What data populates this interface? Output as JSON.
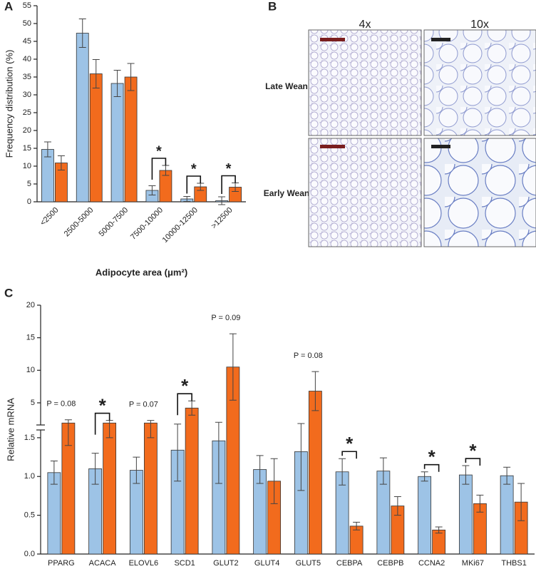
{
  "chart_data": [
    {
      "type": "bar",
      "label": "A",
      "y_label": "Frequency distribution (%)",
      "x_label": "Adipocyte area (μm²)",
      "categories": [
        "<2500",
        "2500-5000",
        "5000-7500",
        "7500-10000",
        "10000-12500",
        ">12500"
      ],
      "series": [
        {
          "color": "#9dc3e6",
          "values": [
            14.7,
            47.3,
            33.2,
            3.2,
            0.8,
            0.3
          ],
          "errors": [
            2.1,
            4.0,
            3.7,
            1.3,
            0.7,
            1.1
          ]
        },
        {
          "color": "#f26b1d",
          "values": [
            10.9,
            35.9,
            35.0,
            8.8,
            4.2,
            4.1
          ],
          "errors": [
            2.0,
            4.0,
            3.8,
            1.4,
            1.0,
            1.2
          ]
        }
      ],
      "ylim": [
        0,
        55
      ],
      "yticks": [
        0,
        5,
        10,
        15,
        20,
        25,
        30,
        35,
        40,
        45,
        50,
        55
      ],
      "grid": false,
      "annotations": [
        {
          "category": "7500-10000",
          "text": "*"
        },
        {
          "category": "10000-12500",
          "text": "*"
        },
        {
          "category": ">12500",
          "text": "*"
        }
      ]
    },
    {
      "type": "bar",
      "label": "C",
      "y_label": "Relative mRNA",
      "categories": [
        "PPARG",
        "ACACA",
        "ELOVL6",
        "SCD1",
        "GLUT2",
        "GLUT4",
        "GLUT5",
        "CEBPA",
        "CEBPB",
        "CCNA2",
        "MKi67",
        "THBS1"
      ],
      "series": [
        {
          "color": "#9dc3e6",
          "values": [
            1.05,
            1.1,
            1.08,
            1.34,
            1.46,
            1.09,
            1.32,
            1.06,
            1.07,
            1.0,
            1.02,
            1.01
          ],
          "errors": [
            0.15,
            0.2,
            0.17,
            0.4,
            0.55,
            0.18,
            0.5,
            0.17,
            0.17,
            0.06,
            0.12,
            0.11
          ]
        },
        {
          "color": "#f26b1d",
          "values": [
            1.9,
            1.9,
            1.9,
            4.2,
            10.5,
            0.94,
            6.8,
            0.36,
            0.62,
            0.31,
            0.65,
            0.67
          ],
          "errors": [
            0.5,
            0.4,
            0.4,
            1.1,
            5.1,
            0.29,
            3.0,
            0.05,
            0.12,
            0.04,
            0.11,
            0.24
          ]
        }
      ],
      "ylim": [
        0,
        20
      ],
      "y_break": 1.6,
      "yticks": [
        {
          "value": 0,
          "label": "0.0"
        },
        {
          "value": 0.5,
          "label": "0.5"
        },
        {
          "value": 1,
          "label": "1.0"
        },
        {
          "value": 1.5,
          "label": "1.5"
        },
        5,
        10,
        15,
        20
      ],
      "grid": false,
      "annotations": [
        {
          "category": "PPARG",
          "text": "P = 0.08"
        },
        {
          "category": "ACACA",
          "text": "*"
        },
        {
          "category": "ELOVL6",
          "text": "P = 0.07"
        },
        {
          "category": "SCD1",
          "text": "*"
        },
        {
          "category": "GLUT2",
          "text": "P = 0.09"
        },
        {
          "category": "GLUT5",
          "text": "P = 0.08"
        },
        {
          "category": "CEBPA",
          "text": "*"
        },
        {
          "category": "CCNA2",
          "text": "*"
        },
        {
          "category": "MKi67",
          "text": "*"
        }
      ]
    }
  ],
  "micrographs": {
    "label": "B",
    "columns": [
      "4x",
      "10x"
    ],
    "rows": [
      "Late Wean",
      "Early Wean"
    ]
  }
}
